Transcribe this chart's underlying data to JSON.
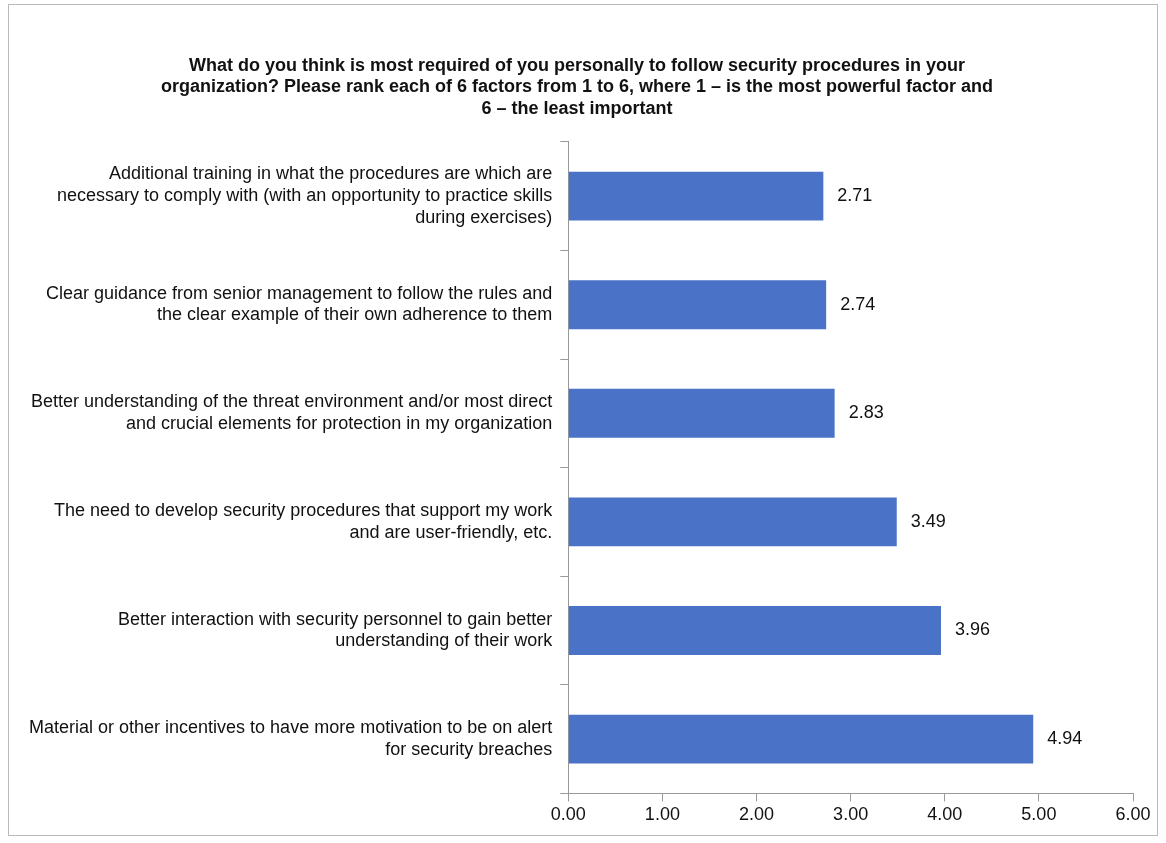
{
  "chart_data": {
    "type": "bar",
    "orientation": "horizontal",
    "title": "What do you think is most required of you personally to follow security procedures in your organization? Please rank each of 6 factors from 1 to 6, where 1 – is the most powerful factor and 6 – the least important",
    "categories": [
      "Additional training in what the procedures are which are necessary to comply with (with an opportunity to practice skills during exercises)",
      "Clear guidance from senior management to follow the rules and the clear example of their own adherence to them",
      "Better understanding of the threat environment and/or most direct and crucial elements for protection in my organization",
      "The need to develop security procedures that support my work and are user-friendly, etc.",
      "Better interaction with security personnel to gain better understanding of their work",
      "Material or other incentives to have more motivation to be on alert for security breaches"
    ],
    "values": [
      2.71,
      2.74,
      2.83,
      3.49,
      3.96,
      4.94
    ],
    "color": "#4a72c6",
    "xlim": [
      0,
      6
    ],
    "xticks": [
      {
        "value": 0,
        "label": "0.00"
      },
      {
        "value": 1,
        "label": "1.00"
      },
      {
        "value": 2,
        "label": "2.00"
      },
      {
        "value": 3,
        "label": "3.00"
      },
      {
        "value": 4,
        "label": "4.00"
      },
      {
        "value": 5,
        "label": "5.00"
      },
      {
        "value": 6,
        "label": "6.00"
      }
    ],
    "data_labels": true,
    "grid": false,
    "legend": false
  }
}
